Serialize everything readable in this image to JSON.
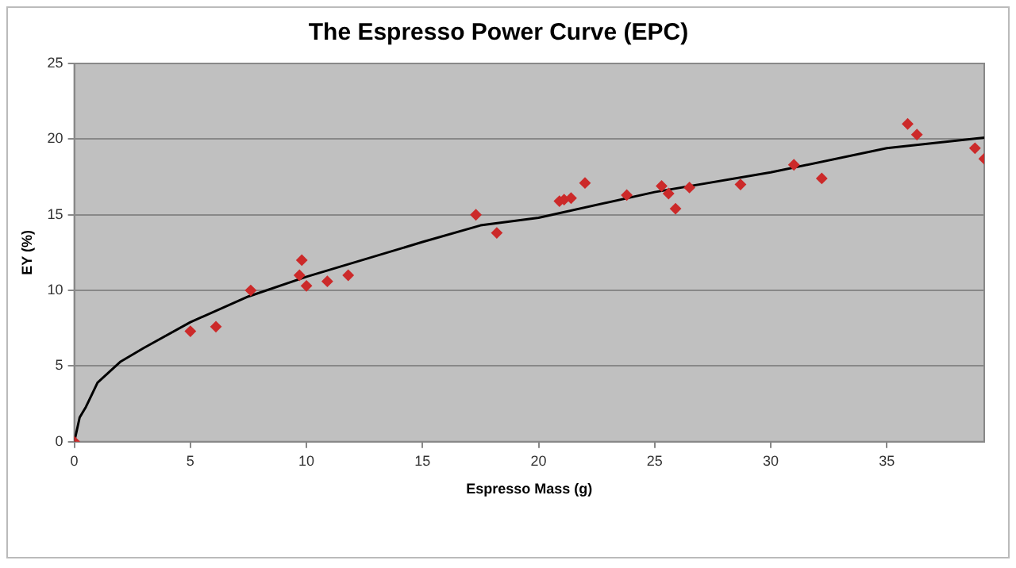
{
  "chart_data": {
    "type": "scatter",
    "title": "The Espresso Power Curve (EPC)",
    "xlabel": "Espresso Mass (g)",
    "ylabel": "EY (%)",
    "xlim": [
      0,
      39.2
    ],
    "xticks": [
      0,
      5,
      10,
      15,
      20,
      25,
      30,
      35
    ],
    "ylim": [
      0,
      25
    ],
    "yticks": [
      0,
      5,
      10,
      15,
      20,
      25
    ],
    "grid": "y",
    "legend": false,
    "series": [
      {
        "type": "scatter",
        "marker": "diamond",
        "color": "#cc2a2a",
        "x": [
          0,
          5.0,
          6.1,
          7.6,
          9.8,
          9.7,
          10.0,
          10.9,
          11.8,
          17.3,
          18.2,
          20.9,
          21.1,
          21.4,
          22.0,
          23.8,
          25.3,
          25.6,
          25.9,
          26.5,
          28.7,
          31.0,
          32.2,
          35.9,
          36.3,
          38.8,
          39.2
        ],
        "values": [
          0,
          7.3,
          7.6,
          10.0,
          12.0,
          11.0,
          10.3,
          10.6,
          11.0,
          15.0,
          13.8,
          15.9,
          16.0,
          16.1,
          17.1,
          16.3,
          16.9,
          16.4,
          15.4,
          16.8,
          17.0,
          18.3,
          17.4,
          21.0,
          20.3,
          19.4,
          18.7
        ]
      },
      {
        "type": "line",
        "marker": "none",
        "color": "#000000",
        "x": [
          0,
          0.23,
          0.5,
          1,
          2,
          3,
          5,
          7.5,
          10,
          15,
          17.5,
          20,
          25,
          30,
          35,
          39.2
        ],
        "values": [
          0,
          1.6,
          2.3,
          3.9,
          5.3,
          6.2,
          7.9,
          9.6,
          10.9,
          13.2,
          14.3,
          14.8,
          16.5,
          17.8,
          19.4,
          20.1
        ]
      }
    ]
  }
}
